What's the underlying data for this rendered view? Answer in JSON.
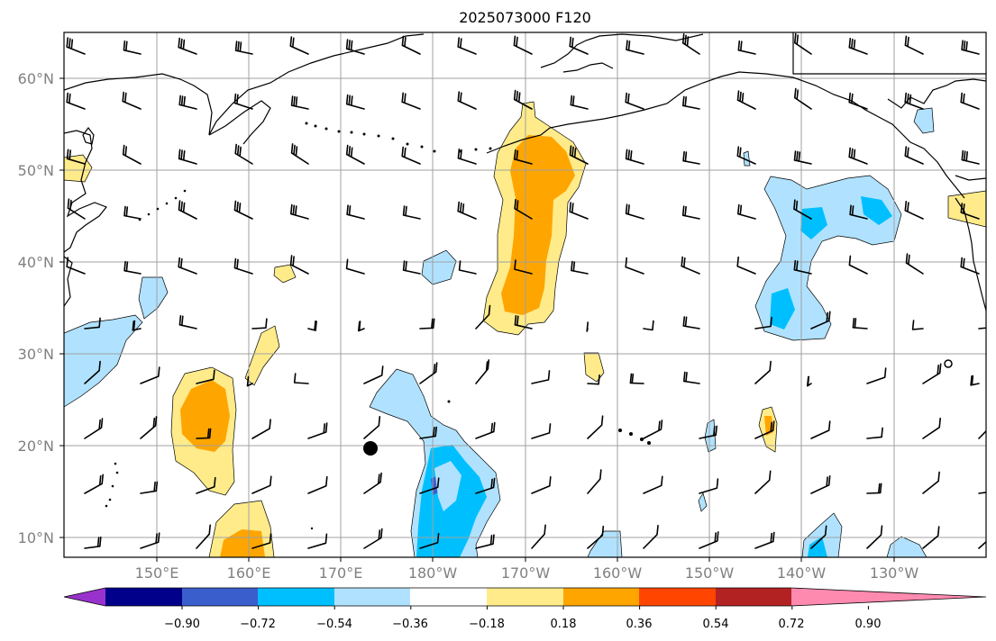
{
  "title": "2025073000 F120",
  "lat_labels": [
    "60°N",
    "50°N",
    "40°N",
    "30°N",
    "20°N",
    "10°N"
  ],
  "lon_labels": [
    "150°E",
    "160°E",
    "170°E",
    "180°W",
    "170°W",
    "160°W",
    "150°W",
    "140°W",
    "130°W"
  ],
  "colorbar": {
    "colors": [
      "#9932cc",
      "#00008b",
      "#3a5fcd",
      "#00bfff",
      "#b0e2ff",
      "#ffffff",
      "#ffeb8a",
      "#ffa500",
      "#ff4500",
      "#b22222",
      "#ff8ab0"
    ],
    "labels": [
      "−0.90",
      "−0.72",
      "−0.54",
      "−0.36",
      "−0.18",
      "0.18",
      "0.36",
      "0.54",
      "0.72",
      "0.90"
    ]
  }
}
